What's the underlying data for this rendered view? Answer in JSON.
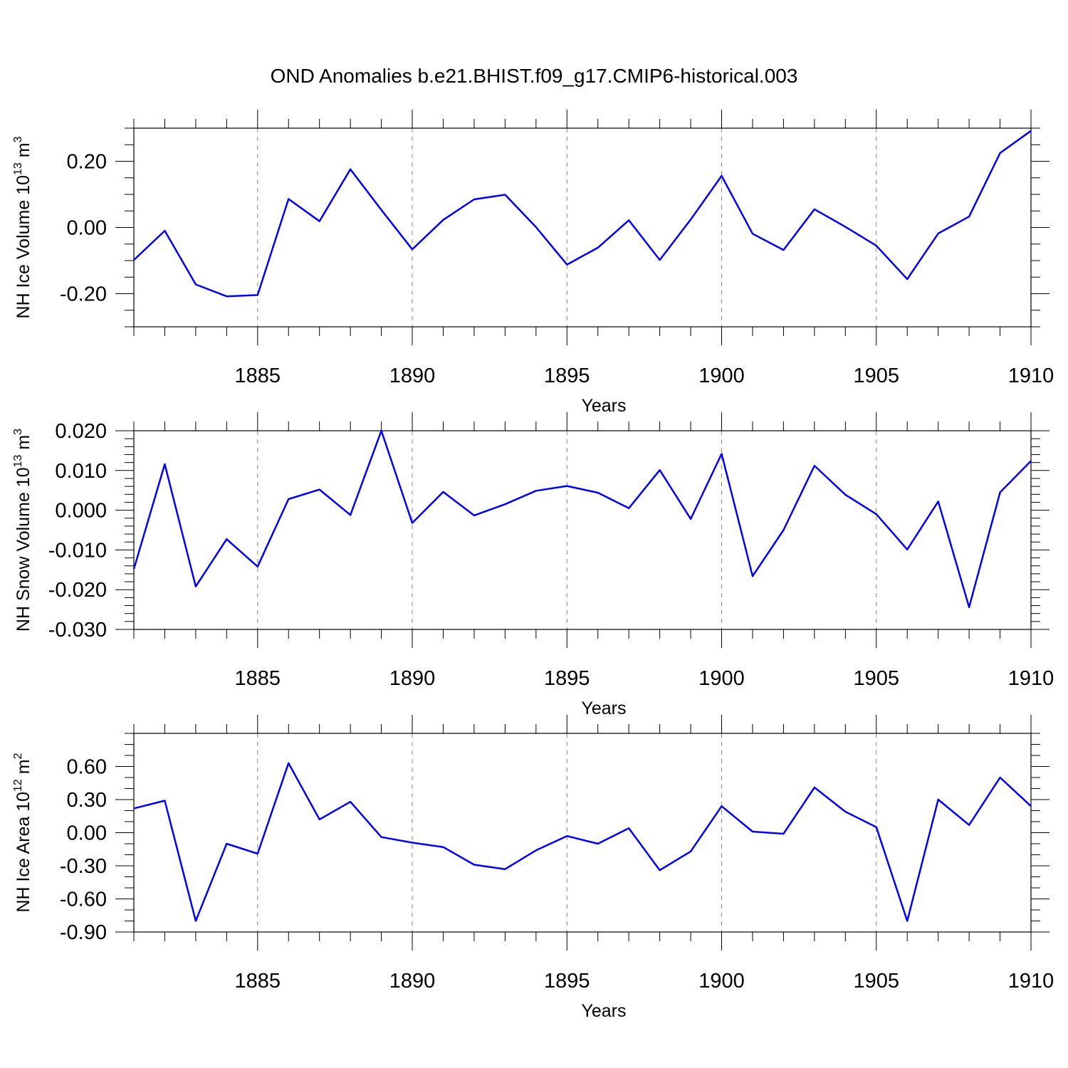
{
  "figure": {
    "title": "OND Anomalies b.e21.BHIST.f09_g17.CMIP6-historical.003"
  },
  "colors": {
    "series": "#0000ff",
    "grid": "#888888",
    "frame": "#000000"
  },
  "chart_data": [
    {
      "type": "line",
      "title": "",
      "xlabel": "Years",
      "ylabel_main": "NH Ice Volume 10",
      "ylabel_exp": "13",
      "ylabel_unit": " m",
      "ylabel_unit_exp": "3",
      "xlim": [
        1881,
        1910
      ],
      "ylim": [
        -0.3,
        0.3
      ],
      "x_ticks": [
        1885,
        1890,
        1895,
        1900,
        1905,
        1910
      ],
      "x_tick_labels": [
        "1885",
        "1890",
        "1895",
        "1900",
        "1905",
        "1910"
      ],
      "y_ticks": [
        -0.2,
        0.0,
        0.2
      ],
      "y_tick_labels": [
        "-0.20",
        "0.00",
        "0.20"
      ],
      "x_minor_step": 1,
      "y_minor_step": 0.05,
      "grid": "vertical dashed at major x ticks",
      "x": [
        1881,
        1882,
        1883,
        1884,
        1885,
        1886,
        1887,
        1888,
        1889,
        1890,
        1891,
        1892,
        1893,
        1894,
        1895,
        1896,
        1897,
        1898,
        1899,
        1900,
        1901,
        1902,
        1903,
        1904,
        1905,
        1906,
        1907,
        1908,
        1909,
        1910
      ],
      "series": [
        {
          "color": "#0000ff",
          "values": [
            -0.098,
            -0.01,
            -0.172,
            -0.208,
            -0.204,
            0.086,
            0.019,
            0.176,
            0.053,
            -0.066,
            0.023,
            0.085,
            0.099,
            0.001,
            -0.112,
            -0.061,
            0.022,
            -0.098,
            0.024,
            0.156,
            -0.019,
            -0.068,
            0.055,
            0.002,
            -0.055,
            -0.156,
            -0.018,
            0.033,
            0.225,
            0.292
          ]
        }
      ]
    },
    {
      "type": "line",
      "title": "",
      "xlabel": "Years",
      "ylabel_main": "NH Snow Volume 10",
      "ylabel_exp": "13",
      "ylabel_unit": " m",
      "ylabel_unit_exp": "3",
      "xlim": [
        1881,
        1910
      ],
      "ylim": [
        -0.03,
        0.02
      ],
      "x_ticks": [
        1885,
        1890,
        1895,
        1900,
        1905,
        1910
      ],
      "x_tick_labels": [
        "1885",
        "1890",
        "1895",
        "1900",
        "1905",
        "1910"
      ],
      "y_ticks": [
        -0.03,
        -0.02,
        -0.01,
        0.0,
        0.01,
        0.02
      ],
      "y_tick_labels": [
        "-0.030",
        "-0.020",
        "-0.010",
        "0.000",
        "0.010",
        "0.020"
      ],
      "x_minor_step": 1,
      "y_minor_step": 0.002,
      "grid": "vertical dashed at major x ticks",
      "x": [
        1881,
        1882,
        1883,
        1884,
        1885,
        1886,
        1887,
        1888,
        1889,
        1890,
        1891,
        1892,
        1893,
        1894,
        1895,
        1896,
        1897,
        1898,
        1899,
        1900,
        1901,
        1902,
        1903,
        1904,
        1905,
        1906,
        1907,
        1908,
        1909,
        1910
      ],
      "series": [
        {
          "color": "#0000ff",
          "values": [
            -0.0148,
            0.0116,
            -0.0192,
            -0.0073,
            -0.0142,
            0.0028,
            0.0052,
            -0.0012,
            0.02,
            -0.0032,
            0.0046,
            -0.0013,
            0.0015,
            0.0049,
            0.0061,
            0.0044,
            0.0005,
            0.0101,
            -0.0022,
            0.0142,
            -0.0166,
            -0.005,
            0.0112,
            0.0039,
            -0.001,
            -0.0099,
            0.0022,
            -0.0244,
            0.0045,
            0.0124
          ]
        }
      ]
    },
    {
      "type": "line",
      "title": "",
      "xlabel": "Years",
      "ylabel_main": "NH Ice Area 10",
      "ylabel_exp": "12",
      "ylabel_unit": " m",
      "ylabel_unit_exp": "2",
      "xlim": [
        1881,
        1910
      ],
      "ylim": [
        -0.9,
        0.9
      ],
      "x_ticks": [
        1885,
        1890,
        1895,
        1900,
        1905,
        1910
      ],
      "x_tick_labels": [
        "1885",
        "1890",
        "1895",
        "1900",
        "1905",
        "1910"
      ],
      "y_ticks": [
        -0.9,
        -0.6,
        -0.3,
        0.0,
        0.3,
        0.6
      ],
      "y_tick_labels": [
        "-0.90",
        "-0.60",
        "-0.30",
        "0.00",
        "0.30",
        "0.60"
      ],
      "x_minor_step": 1,
      "y_minor_step": 0.1,
      "grid": "vertical dashed at major x ticks",
      "x": [
        1881,
        1882,
        1883,
        1884,
        1885,
        1886,
        1887,
        1888,
        1889,
        1890,
        1891,
        1892,
        1893,
        1894,
        1895,
        1896,
        1897,
        1898,
        1899,
        1900,
        1901,
        1902,
        1903,
        1904,
        1905,
        1906,
        1907,
        1908,
        1909,
        1910
      ],
      "series": [
        {
          "color": "#0000ff",
          "values": [
            0.22,
            0.29,
            -0.8,
            -0.1,
            -0.19,
            0.63,
            0.12,
            0.28,
            -0.04,
            -0.09,
            -0.13,
            -0.29,
            -0.33,
            -0.16,
            -0.03,
            -0.1,
            0.04,
            -0.34,
            -0.17,
            0.24,
            0.01,
            -0.01,
            0.41,
            0.19,
            0.05,
            -0.8,
            0.3,
            0.07,
            0.5,
            0.24
          ]
        }
      ]
    }
  ]
}
